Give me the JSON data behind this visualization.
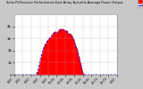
{
  "title": "Solar PV/Inverter Performance East Array Actual & Average Power Output",
  "bg_color": "#c8c8c8",
  "plot_bg_color": "#ffffff",
  "grid_color": "#aaaaaa",
  "bar_color": "#ff0000",
  "avg_line_color": "#0000ff",
  "legend_colors_extra": [
    "#00ccff",
    "#ff00ff",
    "#ffaa00"
  ],
  "ylim": [
    0,
    5000
  ],
  "num_points": 144,
  "actual_values": [
    0,
    0,
    0,
    0,
    0,
    0,
    0,
    0,
    0,
    0,
    0,
    0,
    0,
    0,
    0,
    0,
    0,
    0,
    0,
    0,
    0,
    0,
    0,
    0,
    0,
    0,
    0,
    0,
    0,
    0,
    50,
    150,
    350,
    600,
    900,
    1200,
    1500,
    1700,
    1900,
    2100,
    2300,
    2450,
    2550,
    2650,
    2750,
    2850,
    2950,
    3050,
    3100,
    3200,
    3280,
    3350,
    3400,
    3450,
    3500,
    3550,
    3580,
    3600,
    3580,
    3560,
    3700,
    3750,
    3800,
    3780,
    3760,
    3800,
    3820,
    3850,
    3820,
    3800,
    3750,
    3700,
    3650,
    3600,
    3550,
    3500,
    3450,
    3400,
    3300,
    3200,
    3100,
    3000,
    2850,
    2700,
    2550,
    2350,
    2150,
    1950,
    1700,
    1500,
    1200,
    950,
    700,
    450,
    250,
    100,
    20,
    0,
    0,
    0,
    0,
    0,
    0,
    0,
    0,
    0,
    0,
    0,
    0,
    0,
    0,
    0,
    0,
    0,
    0,
    0,
    0,
    0,
    0,
    0,
    0,
    0,
    0,
    0,
    0,
    0,
    0,
    0,
    0,
    0,
    0,
    0,
    0,
    0,
    0,
    0,
    0,
    0,
    0,
    0,
    0,
    0
  ],
  "avg_values": [
    0,
    0,
    0,
    0,
    0,
    0,
    0,
    0,
    0,
    0,
    0,
    0,
    0,
    0,
    0,
    0,
    0,
    0,
    0,
    0,
    0,
    0,
    0,
    0,
    0,
    0,
    0,
    0,
    0,
    0,
    30,
    120,
    300,
    520,
    800,
    1100,
    1380,
    1580,
    1780,
    1980,
    2180,
    2330,
    2430,
    2530,
    2630,
    2730,
    2830,
    2930,
    2980,
    3080,
    3160,
    3230,
    3280,
    3330,
    3380,
    3430,
    3460,
    3480,
    3460,
    3440,
    3580,
    3630,
    3680,
    3660,
    3640,
    3680,
    3700,
    3730,
    3700,
    3680,
    3630,
    3580,
    3530,
    3480,
    3430,
    3380,
    3330,
    3280,
    3180,
    3080,
    2980,
    2880,
    2730,
    2580,
    2430,
    2230,
    2030,
    1830,
    1580,
    1380,
    1080,
    830,
    580,
    330,
    150,
    50,
    5,
    0,
    0,
    0,
    0,
    0,
    0,
    0,
    0,
    0,
    0,
    0,
    0,
    0,
    0,
    0,
    0,
    0,
    0,
    0,
    0,
    0,
    0,
    0,
    0,
    0,
    0,
    0,
    0,
    0,
    0,
    0,
    0,
    0,
    0,
    0,
    0,
    0,
    0,
    0,
    0,
    0,
    0,
    0,
    0,
    0
  ],
  "xtick_labels": [
    "0:00",
    "2:00",
    "4:00",
    "6:00",
    "8:00",
    "10:00",
    "12:00",
    "14:00",
    "16:00",
    "18:00",
    "20:00",
    "22:00",
    "0:00"
  ],
  "ytick_labels": [
    "0",
    "1k",
    "2k",
    "3k",
    "4k"
  ],
  "ytick_values": [
    0,
    1000,
    2000,
    3000,
    4000
  ]
}
